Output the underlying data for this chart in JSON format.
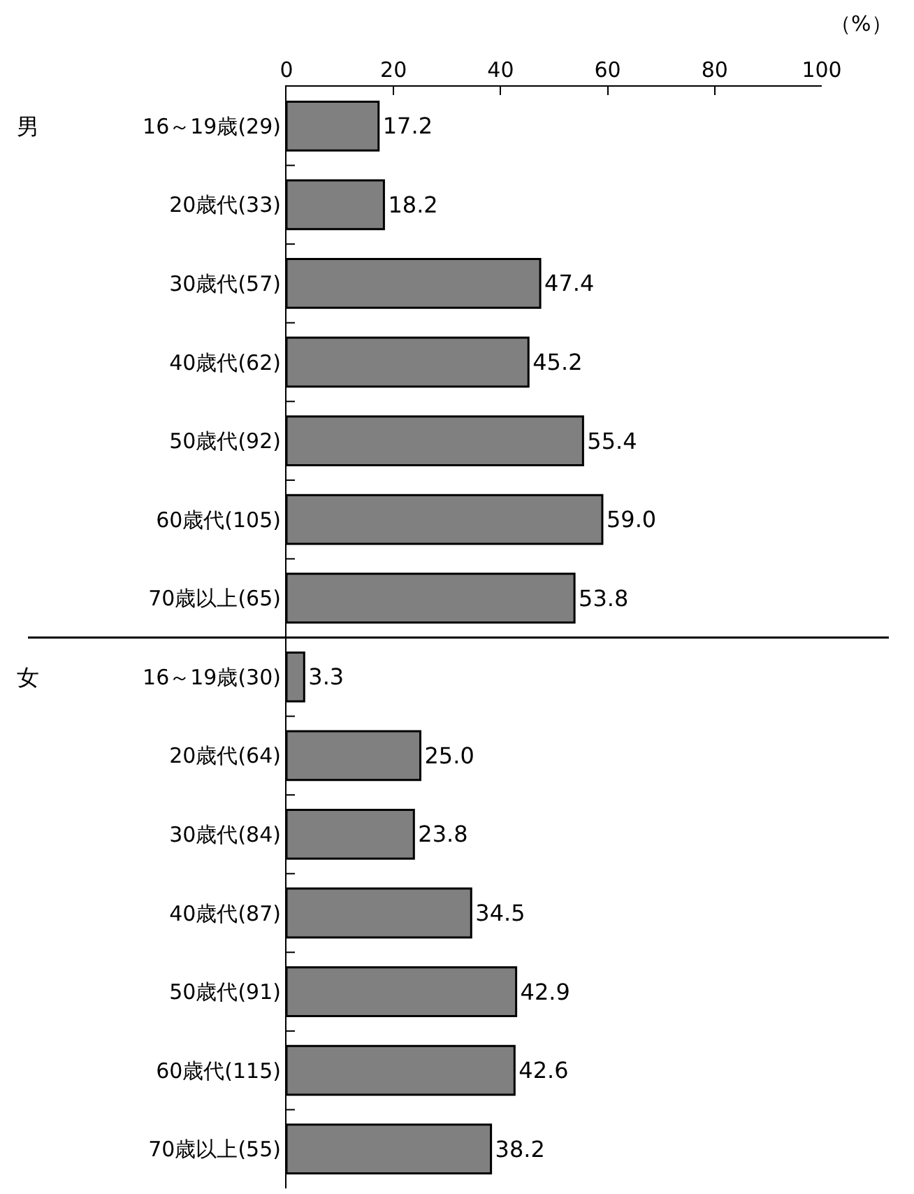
{
  "chart_data": {
    "type": "bar",
    "orientation": "horizontal",
    "xlabel": "（%）",
    "categories": [
      "16～19歳(29)",
      "20歳代(33)",
      "30歳代(57)",
      "40歳代(62)",
      "50歳代(92)",
      "60歳代(105)",
      "70歳以上(65)",
      "16～19歳(30)",
      "20歳代(64)",
      "30歳代(84)",
      "40歳代(87)",
      "50歳代(91)",
      "60歳代(115)",
      "70歳以上(55)"
    ],
    "values": [
      17.2,
      18.2,
      47.4,
      45.2,
      55.4,
      59.0,
      53.8,
      3.3,
      25.0,
      23.8,
      34.5,
      42.9,
      42.6,
      38.2
    ],
    "value_labels": [
      "17.2",
      "18.2",
      "47.4",
      "45.2",
      "55.4",
      "59.0",
      "53.8",
      "3.3",
      "25.0",
      "23.8",
      "34.5",
      "42.9",
      "42.6",
      "38.2"
    ],
    "color": "#808080",
    "xlim": [
      0,
      100
    ],
    "xticks": [
      0,
      20,
      40,
      60,
      80,
      100
    ],
    "annotations": [
      "男",
      "女"
    ]
  }
}
